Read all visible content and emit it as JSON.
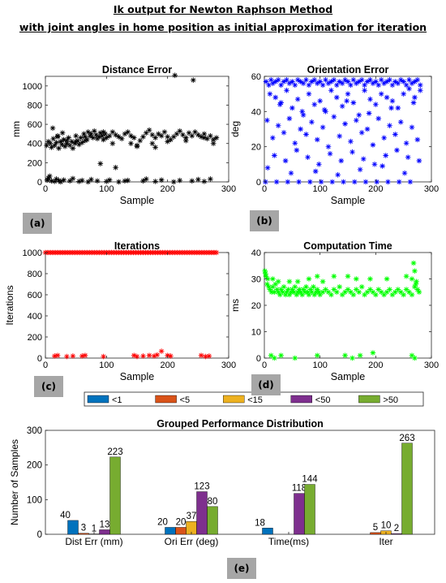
{
  "heading": {
    "line1": "Ik output for Newton Raphson Method",
    "line2": "with joint angles in home position as initial approximation for iteration"
  },
  "panel_tags": [
    "(a)",
    "(b)",
    "(c)",
    "(d)",
    "(e)"
  ],
  "colors": {
    "distance": "#000000",
    "orientation": "#0000ff",
    "iterations": "#ff0000",
    "time": "#00ff00",
    "bins": [
      "#0072bd",
      "#d95319",
      "#edb120",
      "#7e2f8e",
      "#77ac30"
    ]
  },
  "chart_data": [
    {
      "type": "scatter",
      "marker": "*",
      "title": "Distance Error",
      "xlabel": "Sample",
      "ylabel": "mm",
      "xlim": [
        0,
        300
      ],
      "ylim": [
        0,
        1100
      ],
      "xticks": [
        0,
        100,
        200,
        300
      ],
      "yticks": [
        0,
        200,
        400,
        600,
        800,
        1000
      ],
      "x": [
        2,
        5,
        8,
        10,
        13,
        15,
        18,
        20,
        22,
        25,
        27,
        30,
        32,
        35,
        38,
        40,
        43,
        45,
        48,
        50,
        53,
        55,
        58,
        60,
        63,
        65,
        68,
        70,
        73,
        75,
        78,
        80,
        83,
        85,
        88,
        90,
        93,
        95,
        98,
        100,
        105,
        110,
        115,
        120,
        125,
        130,
        135,
        140,
        145,
        150,
        155,
        160,
        165,
        170,
        175,
        180,
        185,
        190,
        195,
        200,
        205,
        210,
        215,
        220,
        225,
        230,
        235,
        240,
        245,
        250,
        255,
        260,
        265,
        270,
        275,
        280,
        12,
        20,
        28,
        35,
        50,
        65,
        95,
        110,
        140,
        150,
        175,
        180,
        200,
        230,
        260,
        275,
        3,
        5,
        7,
        10,
        15,
        18,
        22,
        25,
        30,
        40,
        45,
        55,
        60,
        70,
        75,
        85,
        100,
        105,
        120,
        135,
        160,
        165,
        180,
        190,
        210,
        220,
        240,
        250,
        260,
        270,
        90,
        115,
        130,
        212,
        242
      ],
      "y": [
        380,
        420,
        400,
        360,
        450,
        380,
        410,
        480,
        350,
        420,
        390,
        440,
        370,
        400,
        460,
        380,
        420,
        350,
        400,
        480,
        430,
        390,
        460,
        410,
        500,
        470,
        440,
        520,
        480,
        500,
        460,
        530,
        490,
        450,
        470,
        510,
        480,
        440,
        500,
        460,
        480,
        520,
        490,
        470,
        450,
        500,
        520,
        480,
        460,
        380,
        430,
        470,
        510,
        540,
        490,
        460,
        500,
        480,
        520,
        470,
        440,
        470,
        500,
        530,
        490,
        460,
        510,
        480,
        520,
        490,
        470,
        500,
        450,
        480,
        440,
        460,
        560,
        470,
        510,
        430,
        420,
        430,
        520,
        400,
        400,
        370,
        400,
        360,
        420,
        430,
        460,
        400,
        20,
        40,
        60,
        10,
        5,
        30,
        15,
        0,
        20,
        10,
        35,
        5,
        15,
        0,
        25,
        10,
        5,
        20,
        0,
        15,
        10,
        30,
        5,
        20,
        0,
        15,
        10,
        25,
        5,
        30,
        190,
        150,
        10,
        1110,
        1060
      ]
    },
    {
      "type": "scatter",
      "marker": "*",
      "title": "Orientation Error",
      "xlabel": "Sample",
      "ylabel": "deg",
      "xlim": [
        0,
        300
      ],
      "ylim": [
        0,
        60
      ],
      "xticks": [
        0,
        100,
        200,
        300
      ],
      "yticks": [
        0,
        20,
        40,
        60
      ],
      "x": [
        3,
        8,
        12,
        15,
        20,
        25,
        30,
        35,
        40,
        45,
        50,
        55,
        60,
        65,
        70,
        75,
        80,
        85,
        90,
        95,
        100,
        105,
        110,
        115,
        120,
        125,
        130,
        135,
        140,
        145,
        150,
        155,
        160,
        165,
        170,
        175,
        180,
        185,
        190,
        195,
        200,
        205,
        210,
        215,
        220,
        225,
        230,
        235,
        240,
        245,
        250,
        255,
        260,
        265,
        270,
        275,
        280,
        10,
        20,
        30,
        40,
        50,
        60,
        70,
        80,
        90,
        100,
        110,
        120,
        130,
        140,
        150,
        160,
        170,
        180,
        190,
        200,
        210,
        220,
        230,
        240,
        250,
        260,
        270,
        280,
        5,
        25,
        45,
        65,
        85,
        105,
        125,
        145,
        165,
        185,
        205,
        225,
        245,
        265,
        15,
        35,
        55,
        75,
        95,
        115,
        135,
        155,
        175,
        195,
        215,
        235,
        255,
        275,
        18,
        38,
        58,
        78,
        98,
        118,
        138,
        158,
        178,
        198,
        218,
        238,
        258,
        278,
        2,
        22,
        42,
        62,
        82,
        102,
        122,
        142,
        162,
        182,
        202,
        222,
        242,
        262,
        6,
        48,
        92,
        132,
        172,
        212,
        252,
        28,
        68,
        108,
        148,
        188,
        228,
        268
      ],
      "y": [
        57,
        55,
        58,
        56,
        57,
        58,
        55,
        57,
        58,
        56,
        57,
        55,
        58,
        57,
        56,
        58,
        55,
        57,
        58,
        56,
        57,
        55,
        58,
        56,
        57,
        58,
        55,
        57,
        56,
        58,
        57,
        55,
        58,
        56,
        57,
        58,
        55,
        57,
        58,
        56,
        57,
        55,
        58,
        56,
        57,
        58,
        55,
        57,
        56,
        58,
        57,
        55,
        58,
        56,
        57,
        58,
        55,
        50,
        48,
        45,
        52,
        42,
        47,
        38,
        50,
        44,
        46,
        40,
        52,
        48,
        43,
        50,
        45,
        38,
        52,
        47,
        44,
        50,
        48,
        46,
        42,
        50,
        53,
        48,
        52,
        35,
        32,
        36,
        30,
        34,
        31,
        37,
        33,
        35,
        30,
        36,
        32,
        34,
        31,
        25,
        28,
        22,
        27,
        24,
        20,
        26,
        23,
        28,
        21,
        25,
        27,
        22,
        24,
        15,
        12,
        18,
        14,
        10,
        16,
        12,
        17,
        13,
        10,
        15,
        18,
        14,
        12,
        0,
        0,
        0,
        0,
        0,
        0,
        0,
        0,
        0,
        0,
        0,
        0,
        0,
        0,
        8,
        5,
        6,
        4,
        7,
        9,
        5,
        44,
        40,
        41,
        46,
        39,
        42,
        45
      ]
    },
    {
      "type": "scatter",
      "marker": "*",
      "title": "Iterations",
      "xlabel": "Sample",
      "ylabel": "Iterations",
      "xlim": [
        0,
        300
      ],
      "ylim": [
        0,
        1000
      ],
      "xticks": [
        0,
        100,
        200,
        300
      ],
      "yticks": [
        0,
        200,
        400,
        600,
        800,
        1000
      ],
      "x": [
        0,
        4,
        8,
        12,
        16,
        20,
        24,
        28,
        32,
        36,
        40,
        44,
        48,
        52,
        56,
        60,
        64,
        68,
        72,
        76,
        80,
        84,
        88,
        92,
        96,
        100,
        104,
        108,
        112,
        116,
        120,
        124,
        128,
        132,
        136,
        140,
        144,
        148,
        152,
        156,
        160,
        164,
        168,
        172,
        176,
        180,
        184,
        188,
        192,
        196,
        200,
        204,
        208,
        212,
        216,
        220,
        224,
        228,
        232,
        236,
        240,
        244,
        248,
        252,
        256,
        260,
        264,
        268,
        272,
        276,
        280,
        15,
        20,
        35,
        45,
        60,
        65,
        95,
        145,
        150,
        160,
        170,
        178,
        183,
        190,
        200,
        205,
        255,
        262,
        268
      ],
      "y": [
        1000,
        1000,
        1000,
        1000,
        1000,
        1000,
        1000,
        1000,
        1000,
        1000,
        1000,
        1000,
        1000,
        1000,
        1000,
        1000,
        1000,
        1000,
        1000,
        1000,
        1000,
        1000,
        1000,
        1000,
        1000,
        1000,
        1000,
        1000,
        1000,
        1000,
        1000,
        1000,
        1000,
        1000,
        1000,
        1000,
        1000,
        1000,
        1000,
        1000,
        1000,
        1000,
        1000,
        1000,
        1000,
        1000,
        1000,
        1000,
        1000,
        1000,
        1000,
        1000,
        1000,
        1000,
        1000,
        1000,
        1000,
        1000,
        1000,
        1000,
        1000,
        1000,
        1000,
        1000,
        1000,
        1000,
        1000,
        1000,
        1000,
        1000,
        1000,
        20,
        25,
        15,
        20,
        20,
        25,
        15,
        25,
        15,
        20,
        25,
        20,
        30,
        65,
        25,
        20,
        25,
        15,
        20
      ]
    },
    {
      "type": "scatter",
      "marker": "*",
      "title": "Computation Time",
      "xlabel": "Sample",
      "ylabel": "ms",
      "xlim": [
        0,
        300
      ],
      "ylim": [
        0,
        40
      ],
      "xticks": [
        0,
        100,
        200,
        300
      ],
      "yticks": [
        0,
        10,
        20,
        30,
        40
      ],
      "x": [
        1,
        3,
        5,
        8,
        10,
        13,
        15,
        18,
        20,
        23,
        25,
        28,
        30,
        33,
        35,
        38,
        40,
        43,
        45,
        48,
        50,
        53,
        55,
        58,
        60,
        63,
        65,
        68,
        70,
        73,
        75,
        78,
        80,
        83,
        85,
        88,
        90,
        93,
        95,
        98,
        100,
        105,
        110,
        115,
        120,
        125,
        130,
        135,
        140,
        145,
        150,
        155,
        160,
        165,
        170,
        175,
        180,
        185,
        190,
        195,
        200,
        205,
        210,
        215,
        220,
        225,
        230,
        235,
        240,
        245,
        250,
        255,
        260,
        265,
        270,
        272,
        275,
        278,
        2,
        6,
        15,
        25,
        45,
        60,
        80,
        95,
        105,
        125,
        150,
        165,
        190,
        220,
        255,
        265,
        268,
        270,
        273,
        12,
        18,
        30,
        55,
        95,
        145,
        158,
        172,
        195,
        265,
        270
      ],
      "y": [
        33,
        31,
        28,
        27,
        26,
        25,
        27,
        25,
        28,
        26,
        25,
        24,
        26,
        25,
        27,
        24,
        25,
        26,
        24,
        25,
        26,
        25,
        27,
        24,
        25,
        26,
        25,
        24,
        26,
        25,
        27,
        25,
        24,
        26,
        25,
        27,
        24,
        25,
        26,
        25,
        24,
        25,
        26,
        25,
        24,
        26,
        25,
        27,
        24,
        25,
        26,
        25,
        24,
        26,
        25,
        27,
        24,
        25,
        26,
        25,
        24,
        26,
        25,
        24,
        25,
        26,
        24,
        25,
        26,
        25,
        24,
        26,
        25,
        24,
        27,
        28,
        26,
        25,
        32,
        30,
        30,
        29,
        29,
        29,
        30,
        31,
        29,
        31,
        31,
        30,
        30,
        30,
        31,
        30,
        36,
        33,
        29,
        1,
        0,
        1,
        0,
        1,
        1,
        0,
        1,
        2,
        1,
        0
      ]
    },
    {
      "type": "bar",
      "title": "Grouped Performance Distribution",
      "ylabel": "Number of Samples",
      "categories": [
        "Dist Err (mm)",
        "Ori Err (deg)",
        "Time(ms)",
        "Iter"
      ],
      "series": [
        {
          "name": "<1",
          "values": [
            40,
            20,
            18,
            0
          ]
        },
        {
          "name": "<5",
          "values": [
            3,
            20,
            0,
            5
          ]
        },
        {
          "name": "<15",
          "values": [
            1,
            37,
            0,
            10
          ]
        },
        {
          "name": "<50",
          "values": [
            13,
            123,
            118,
            2
          ]
        },
        {
          "name": ">50",
          "values": [
            223,
            80,
            144,
            263
          ]
        }
      ],
      "data_labels": [
        [
          "40",
          "3",
          "1",
          "13",
          "223"
        ],
        [
          "20",
          "20",
          "37",
          "123",
          "80"
        ],
        [
          "18",
          "",
          "",
          "118",
          "144"
        ],
        [
          "",
          "5",
          "10",
          "2",
          "263"
        ]
      ],
      "ylim": [
        0,
        300
      ],
      "yticks": [
        0,
        100,
        200,
        300
      ],
      "legend": "top",
      "grid": false
    }
  ]
}
